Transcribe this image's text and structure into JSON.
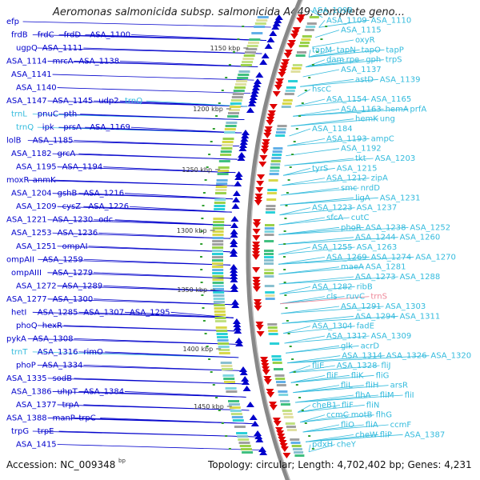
{
  "header": {
    "title": "Aeromonas salmonicida subsp. salmonicida A449, complete geno..."
  },
  "footer": {
    "accession": "Accession: NC_009348",
    "bp": "bp",
    "summary": "Topology: circular; Length: 4,702,402 bp; Genes: 4,231"
  },
  "colors": {
    "forward": "#0000cc",
    "reverse": "#e00000",
    "rna": "#33bbdd",
    "rna_rev": "#ee8899"
  },
  "scale_ticks": [
    "1150 kbp",
    "1200 kbp",
    "1250 kbp",
    "1300 kbp",
    "1350 kbp",
    "1400 kbp",
    "1450 kbp"
  ],
  "left_labels": [
    {
      "text": "efp",
      "c": "f"
    },
    {
      "text": "frdB",
      "c": "f"
    },
    {
      "text": "frdC",
      "c": "f"
    },
    {
      "text": "frdD",
      "c": "f"
    },
    {
      "text": "ASA_1100",
      "c": "f"
    },
    {
      "text": "ugpQ",
      "c": "f"
    },
    {
      "text": "ASA_1111",
      "c": "f"
    },
    {
      "text": "ASA_1114",
      "c": "f"
    },
    {
      "text": "mrcA",
      "c": "f"
    },
    {
      "text": "ASA_1138",
      "c": "f"
    },
    {
      "text": "ASA_1141",
      "c": "f"
    },
    {
      "text": "ASA_1140",
      "c": "f"
    },
    {
      "text": "ASA_1147",
      "c": "f"
    },
    {
      "text": "ASA_1145",
      "c": "f"
    },
    {
      "text": "udp2",
      "c": "f"
    },
    {
      "text": "trnQ",
      "c": "r"
    },
    {
      "text": "trnL",
      "c": "r"
    },
    {
      "text": "pnuC",
      "c": "f"
    },
    {
      "text": "pth",
      "c": "f"
    },
    {
      "text": "trnQ",
      "c": "r"
    },
    {
      "text": "ipk",
      "c": "f"
    },
    {
      "text": "prsA",
      "c": "f"
    },
    {
      "text": "ASA_1169",
      "c": "f"
    },
    {
      "text": "lolB",
      "c": "f"
    },
    {
      "text": "ASA_1185",
      "c": "f"
    },
    {
      "text": "ASA_1182",
      "c": "f"
    },
    {
      "text": "grcA",
      "c": "f"
    },
    {
      "text": "ASA_1195",
      "c": "f"
    },
    {
      "text": "ASA_1194",
      "c": "f"
    },
    {
      "text": "moxR",
      "c": "f"
    },
    {
      "text": "anmK",
      "c": "f"
    },
    {
      "text": "ASA_1204",
      "c": "f"
    },
    {
      "text": "gshB",
      "c": "f"
    },
    {
      "text": "ASA_1216",
      "c": "f"
    },
    {
      "text": "ASA_1209",
      "c": "f"
    },
    {
      "text": "cysZ",
      "c": "f"
    },
    {
      "text": "ASA_1226",
      "c": "f"
    },
    {
      "text": "ASA_1221",
      "c": "f"
    },
    {
      "text": "ASA_1230",
      "c": "f"
    },
    {
      "text": "odc",
      "c": "f"
    },
    {
      "text": "ASA_1253",
      "c": "f"
    },
    {
      "text": "ASA_1236",
      "c": "f"
    },
    {
      "text": "ASA_1251",
      "c": "f"
    },
    {
      "text": "ompAI",
      "c": "f"
    },
    {
      "text": "ompAII",
      "c": "f"
    },
    {
      "text": "ASA_1259",
      "c": "f"
    },
    {
      "text": "ompAIII",
      "c": "f"
    },
    {
      "text": "ASA_1279",
      "c": "f"
    },
    {
      "text": "ASA_1272",
      "c": "f"
    },
    {
      "text": "ASA_1289",
      "c": "f"
    },
    {
      "text": "ASA_1277",
      "c": "f"
    },
    {
      "text": "ASA_1300",
      "c": "f"
    },
    {
      "text": "hetI",
      "c": "f"
    },
    {
      "text": "ASA_1285",
      "c": "f"
    },
    {
      "text": "ASA_1307",
      "c": "f"
    },
    {
      "text": "ASA_1295",
      "c": "f"
    },
    {
      "text": "phoQ",
      "c": "f"
    },
    {
      "text": "hexR",
      "c": "f"
    },
    {
      "text": "pykA",
      "c": "f"
    },
    {
      "text": "ASA_1308",
      "c": "f"
    },
    {
      "text": "trnT",
      "c": "r"
    },
    {
      "text": "ASA_1316",
      "c": "f"
    },
    {
      "text": "rimO",
      "c": "f"
    },
    {
      "text": "phoP",
      "c": "f"
    },
    {
      "text": "ASA_1334",
      "c": "f"
    },
    {
      "text": "ASA_1335",
      "c": "f"
    },
    {
      "text": "sodB",
      "c": "f"
    },
    {
      "text": "ASA_1386",
      "c": "f"
    },
    {
      "text": "uhpT",
      "c": "f"
    },
    {
      "text": "ASA_1384",
      "c": "f"
    },
    {
      "text": "ASA_1377",
      "c": "f"
    },
    {
      "text": "trpA",
      "c": "f"
    },
    {
      "text": "ASA_1388",
      "c": "f"
    },
    {
      "text": "manP",
      "c": "f"
    },
    {
      "text": "trpC",
      "c": "f"
    },
    {
      "text": "trpG",
      "c": "f"
    },
    {
      "text": "trpE",
      "c": "f"
    },
    {
      "text": "ASA_1415",
      "c": "f"
    }
  ],
  "right_labels": [
    {
      "text": "ASA_1098",
      "c": "r"
    },
    {
      "text": "ASA_1109",
      "c": "r"
    },
    {
      "text": "ASA_1110",
      "c": "r"
    },
    {
      "text": "ASA_1115",
      "c": "r"
    },
    {
      "text": "oxyR",
      "c": "r"
    },
    {
      "text": "tapM",
      "c": "r"
    },
    {
      "text": "tapN",
      "c": "r"
    },
    {
      "text": "tapO",
      "c": "r"
    },
    {
      "text": "tapP",
      "c": "r"
    },
    {
      "text": "dam",
      "c": "r"
    },
    {
      "text": "rpe",
      "c": "r"
    },
    {
      "text": "gph",
      "c": "r"
    },
    {
      "text": "trpS",
      "c": "r"
    },
    {
      "text": "ASA_1137",
      "c": "r"
    },
    {
      "text": "astD",
      "c": "r"
    },
    {
      "text": "ASA_1139",
      "c": "r"
    },
    {
      "text": "hscC",
      "c": "r"
    },
    {
      "text": "ASA_1154",
      "c": "r"
    },
    {
      "text": "ASA_1165",
      "c": "r"
    },
    {
      "text": "ASA_1163",
      "c": "r"
    },
    {
      "text": "hemA",
      "c": "r"
    },
    {
      "text": "prfA",
      "c": "r"
    },
    {
      "text": "hemK",
      "c": "r"
    },
    {
      "text": "ung",
      "c": "r"
    },
    {
      "text": "ASA_1184",
      "c": "r"
    },
    {
      "text": "ASA_1193",
      "c": "r"
    },
    {
      "text": "ampC",
      "c": "r"
    },
    {
      "text": "ASA_1192",
      "c": "r"
    },
    {
      "text": "tkt",
      "c": "r"
    },
    {
      "text": "ASA_1203",
      "c": "r"
    },
    {
      "text": "tyrS",
      "c": "r"
    },
    {
      "text": "ASA_1215",
      "c": "r"
    },
    {
      "text": "ASA_1212",
      "c": "r"
    },
    {
      "text": "zipA",
      "c": "r"
    },
    {
      "text": "smc",
      "c": "r"
    },
    {
      "text": "nrdD",
      "c": "r"
    },
    {
      "text": "ligA",
      "c": "r"
    },
    {
      "text": "ASA_1231",
      "c": "r"
    },
    {
      "text": "ASA_1223",
      "c": "r"
    },
    {
      "text": "ASA_1237",
      "c": "r"
    },
    {
      "text": "sfcA",
      "c": "r"
    },
    {
      "text": "cutC",
      "c": "r"
    },
    {
      "text": "phoR",
      "c": "r"
    },
    {
      "text": "ASA_1238",
      "c": "r"
    },
    {
      "text": "ASA_1252",
      "c": "r"
    },
    {
      "text": "ASA_1244",
      "c": "r"
    },
    {
      "text": "ASA_1260",
      "c": "r"
    },
    {
      "text": "ASA_1255",
      "c": "r"
    },
    {
      "text": "ASA_1263",
      "c": "r"
    },
    {
      "text": "ASA_1269",
      "c": "r"
    },
    {
      "text": "ASA_1274",
      "c": "r"
    },
    {
      "text": "ASA_1270",
      "c": "r"
    },
    {
      "text": "maeA",
      "c": "r"
    },
    {
      "text": "ASA_1281",
      "c": "r"
    },
    {
      "text": "ASA_1273",
      "c": "r"
    },
    {
      "text": "ASA_1288",
      "c": "r"
    },
    {
      "text": "ASA_1282",
      "c": "r"
    },
    {
      "text": "ribB",
      "c": "r"
    },
    {
      "text": "cls",
      "c": "r"
    },
    {
      "text": "ruvC",
      "c": "r"
    },
    {
      "text": "trnS",
      "c": "rr"
    },
    {
      "text": "ASA_1291",
      "c": "r"
    },
    {
      "text": "ASA_1303",
      "c": "r"
    },
    {
      "text": "ASA_1294",
      "c": "r"
    },
    {
      "text": "ASA_1311",
      "c": "r"
    },
    {
      "text": "ASA_1304",
      "c": "r"
    },
    {
      "text": "fadE",
      "c": "r"
    },
    {
      "text": "ASA_1312",
      "c": "r"
    },
    {
      "text": "ASA_1309",
      "c": "r"
    },
    {
      "text": "glk",
      "c": "r"
    },
    {
      "text": "acrD",
      "c": "r"
    },
    {
      "text": "ASA_1314",
      "c": "r"
    },
    {
      "text": "ASA_1326",
      "c": "r"
    },
    {
      "text": "ASA_1320",
      "c": "r"
    },
    {
      "text": "fliE",
      "c": "r"
    },
    {
      "text": "ASA_1328",
      "c": "r"
    },
    {
      "text": "fliJ",
      "c": "r"
    },
    {
      "text": "fliF",
      "c": "r"
    },
    {
      "text": "fliK",
      "c": "r"
    },
    {
      "text": "fliG",
      "c": "r"
    },
    {
      "text": "fliL",
      "c": "r"
    },
    {
      "text": "fliH",
      "c": "r"
    },
    {
      "text": "arsR",
      "c": "r"
    },
    {
      "text": "flhA",
      "c": "r"
    },
    {
      "text": "fliM",
      "c": "r"
    },
    {
      "text": "fliI",
      "c": "r"
    },
    {
      "text": "cheB1",
      "c": "r"
    },
    {
      "text": "fliF",
      "c": "r"
    },
    {
      "text": "fliN",
      "c": "r"
    },
    {
      "text": "ccmC",
      "c": "r"
    },
    {
      "text": "motB",
      "c": "r"
    },
    {
      "text": "flhG",
      "c": "r"
    },
    {
      "text": "fliO",
      "c": "r"
    },
    {
      "text": "fliA",
      "c": "r"
    },
    {
      "text": "ccmF",
      "c": "r"
    },
    {
      "text": "cheW",
      "c": "r"
    },
    {
      "text": "fliP",
      "c": "r"
    },
    {
      "text": "ASA_1387",
      "c": "r"
    },
    {
      "text": "pdxH",
      "c": "r"
    },
    {
      "text": "cheY",
      "c": "r"
    }
  ]
}
